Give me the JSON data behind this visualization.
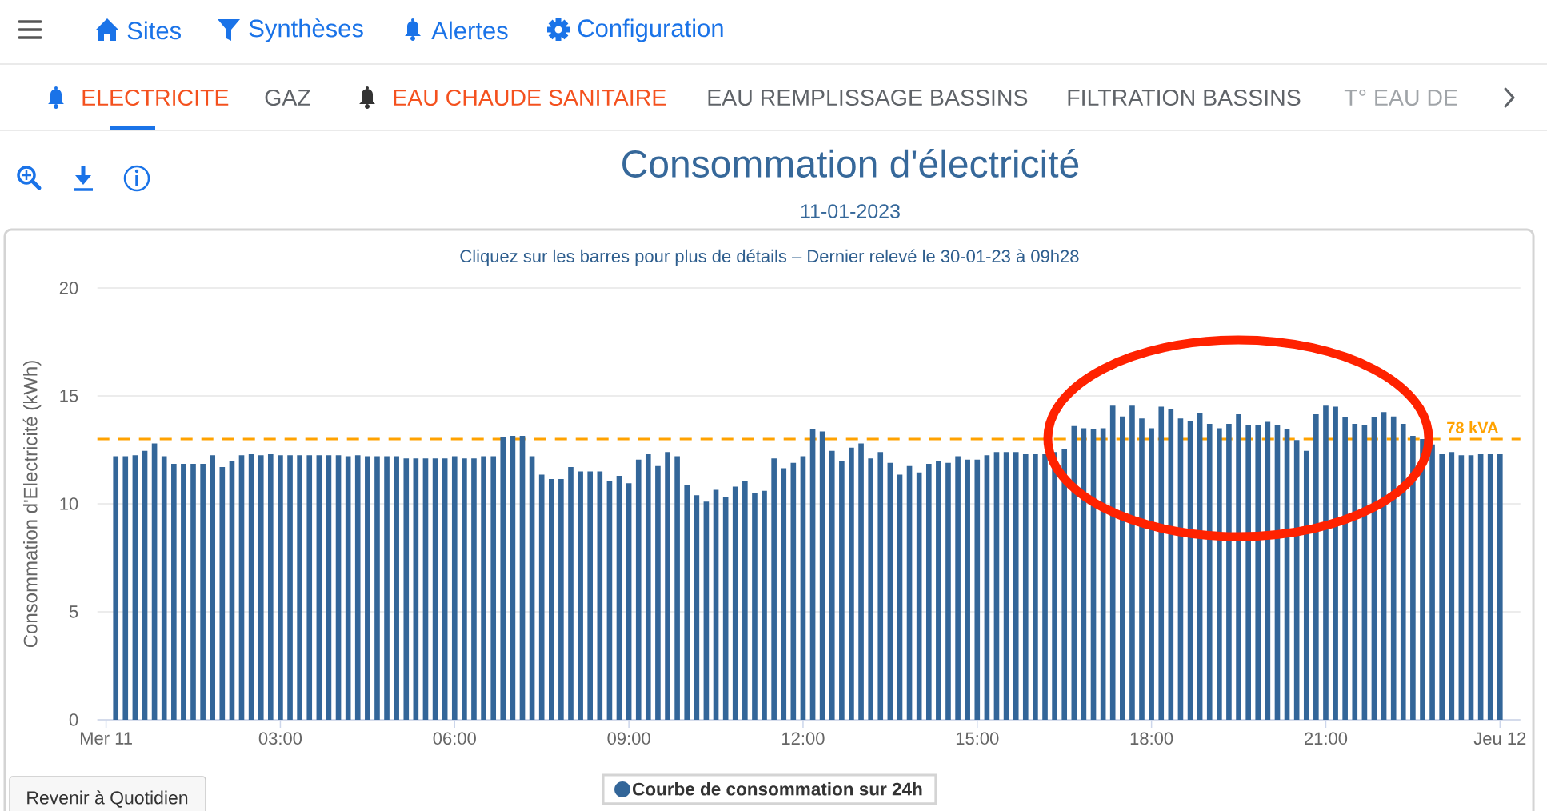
{
  "chart_data": {
    "type": "bar",
    "title": "Consommation d'électricité",
    "subtitle": "11-01-2023",
    "ylabel": "Consommation d'Electricité (kWh)",
    "x": [
      0.167,
      0.333,
      0.5,
      0.667,
      0.833,
      1,
      1.167,
      1.333,
      1.5,
      1.667,
      1.833,
      2,
      2.167,
      2.333,
      2.5,
      2.667,
      2.833,
      3,
      3.167,
      3.333,
      3.5,
      3.667,
      3.833,
      4,
      4.167,
      4.333,
      4.5,
      4.667,
      4.833,
      5,
      5.167,
      5.333,
      5.5,
      5.667,
      5.833,
      6,
      6.167,
      6.333,
      6.5,
      6.667,
      6.833,
      7,
      7.167,
      7.333,
      7.5,
      7.667,
      7.833,
      8,
      8.167,
      8.333,
      8.5,
      8.667,
      8.833,
      9,
      9.167,
      9.333,
      9.5,
      9.667,
      9.833,
      10,
      10.167,
      10.333,
      10.5,
      10.667,
      10.833,
      11,
      11.167,
      11.333,
      11.5,
      11.667,
      11.833,
      12,
      12.167,
      12.333,
      12.5,
      12.667,
      12.833,
      13,
      13.167,
      13.333,
      13.5,
      13.667,
      13.833,
      14,
      14.167,
      14.333,
      14.5,
      14.667,
      14.833,
      15,
      15.167,
      15.333,
      15.5,
      15.667,
      15.833,
      16,
      16.167,
      16.333,
      16.5,
      16.667,
      16.833,
      17,
      17.167,
      17.333,
      17.5,
      17.667,
      17.833,
      18,
      18.167,
      18.333,
      18.5,
      18.667,
      18.833,
      19,
      19.167,
      19.333,
      19.5,
      19.667,
      19.833,
      20,
      20.167,
      20.333,
      20.5,
      20.667,
      20.833,
      21,
      21.167,
      21.333,
      21.5,
      21.667,
      21.833,
      22,
      22.167,
      22.333,
      22.5,
      22.667,
      22.833,
      23,
      23.167,
      23.333,
      23.5,
      23.667,
      23.833,
      24
    ],
    "series": [
      {
        "name": "Courbe de consommation sur 24h",
        "color": "#336699",
        "values": [
          12.2,
          12.2,
          12.25,
          12.45,
          12.8,
          12.2,
          11.85,
          11.85,
          11.85,
          11.85,
          12.25,
          11.7,
          12.0,
          12.25,
          12.3,
          12.25,
          12.3,
          12.25,
          12.25,
          12.25,
          12.25,
          12.25,
          12.25,
          12.25,
          12.2,
          12.25,
          12.2,
          12.2,
          12.2,
          12.2,
          12.1,
          12.1,
          12.1,
          12.1,
          12.1,
          12.2,
          12.1,
          12.1,
          12.2,
          12.2,
          13.1,
          13.15,
          13.15,
          12.2,
          11.35,
          11.15,
          11.15,
          11.7,
          11.5,
          11.5,
          11.5,
          11.05,
          11.3,
          10.95,
          12.05,
          12.3,
          11.75,
          12.4,
          12.2,
          10.85,
          10.4,
          10.1,
          10.65,
          10.3,
          10.8,
          11.05,
          10.5,
          10.6,
          12.1,
          11.65,
          11.9,
          12.2,
          13.45,
          13.35,
          12.45,
          12.0,
          12.6,
          12.8,
          12.1,
          12.4,
          11.9,
          11.35,
          11.75,
          11.45,
          11.85,
          12.0,
          11.9,
          12.2,
          12.05,
          12.05,
          12.25,
          12.4,
          12.4,
          12.4,
          12.3,
          12.3,
          12.3,
          12.4,
          12.55,
          13.6,
          13.5,
          13.45,
          13.5,
          14.55,
          14.05,
          14.55,
          13.95,
          13.5,
          14.5,
          14.4,
          13.95,
          13.85,
          14.2,
          13.7,
          13.5,
          13.7,
          14.15,
          13.65,
          13.65,
          13.8,
          13.65,
          13.45,
          12.95,
          12.45,
          14.15,
          14.55,
          14.5,
          14.0,
          13.7,
          13.65,
          14.0,
          14.25,
          14.05,
          13.7,
          13.15,
          13.0,
          12.75,
          12.3,
          12.4,
          12.25,
          12.25,
          12.3,
          12.3,
          12.3
        ]
      }
    ],
    "xlim": [
      -0.15,
      24.35
    ],
    "xticks": [
      {
        "value": 0,
        "label": "Mer 11"
      },
      {
        "value": 3,
        "label": "03:00"
      },
      {
        "value": 6,
        "label": "06:00"
      },
      {
        "value": 9,
        "label": "09:00"
      },
      {
        "value": 12,
        "label": "12:00"
      },
      {
        "value": 15,
        "label": "15:00"
      },
      {
        "value": 18,
        "label": "18:00"
      },
      {
        "value": 21,
        "label": "21:00"
      },
      {
        "value": 24,
        "label": "Jeu 12"
      }
    ],
    "ylim": [
      0,
      20
    ],
    "yticks": [
      0,
      5,
      10,
      15,
      20
    ],
    "grid": "y",
    "legend": "bottom",
    "ref_lines": [
      {
        "axis": "y",
        "value": 13,
        "label": "78 kVA",
        "color": "#FFA200",
        "line_style": "dashed"
      }
    ],
    "annotations": [
      "Cliquez sur les barres pour plus de détails – Dernier relevé le 30-01-23 à 09h28",
      "Sites",
      "Synthèses",
      "Alertes",
      "Configuration",
      "ELECTRICITE",
      "GAZ",
      "EAU CHAUDE SANITAIRE",
      "EAU REMPLISSAGE BASSINS",
      "FILTRATION BASSINS",
      "T° EAU DE",
      "Revenir à Quotidien"
    ]
  }
}
